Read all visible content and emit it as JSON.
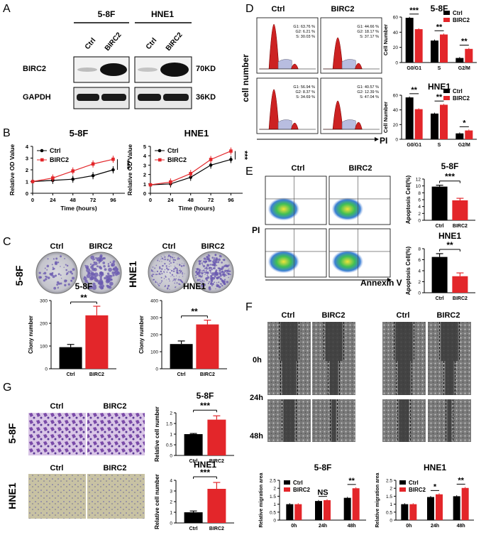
{
  "panel_labels": [
    "A",
    "B",
    "C",
    "D",
    "E",
    "F",
    "G"
  ],
  "ctrl": "Ctrl",
  "birc2": "BIRC2",
  "cell_58f": "5-8F",
  "cell_hne1": "HNE1",
  "A": {
    "targets": [
      "BIRC2",
      "GAPDH"
    ],
    "sizes": [
      "70KD",
      "36KD"
    ]
  },
  "B": {
    "ylabel": "Relative OD Value",
    "xlabel": "Time  (hours)",
    "sig": "***",
    "chart_data": [
      {
        "type": "line",
        "title": "5-8F",
        "x": [
          0,
          24,
          48,
          72,
          96
        ],
        "xlabel": "Time  (hours)",
        "ylabel": "Relative OD Value",
        "ylim": [
          0,
          4
        ],
        "series": [
          {
            "name": "Ctrl",
            "values": [
              1.0,
              1.1,
              1.2,
              1.5,
              2.0
            ]
          },
          {
            "name": "BIRC2",
            "values": [
              1.0,
              1.3,
              1.9,
              2.5,
              2.9
            ]
          }
        ]
      },
      {
        "type": "line",
        "title": "HNE1",
        "x": [
          0,
          24,
          48,
          72,
          96
        ],
        "xlabel": "Time  (hours)",
        "ylabel": "Relative OD Value",
        "ylim": [
          0,
          5
        ],
        "series": [
          {
            "name": "Ctrl",
            "values": [
              0.9,
              1.0,
              1.7,
              3.0,
              3.6
            ]
          },
          {
            "name": "BIRC2",
            "values": [
              0.9,
              1.2,
              2.1,
              3.6,
              4.5
            ]
          }
        ]
      }
    ]
  },
  "C": {
    "ylabel": "Clony number",
    "sig": "**",
    "chart_data": [
      {
        "type": "bar",
        "title": "5-8F",
        "categories": [
          "Ctrl",
          "BIRC2"
        ],
        "values": [
          95,
          235
        ],
        "errors": [
          12,
          40
        ],
        "ylim": [
          0,
          300
        ],
        "ylabel": "Clony number"
      },
      {
        "type": "bar",
        "title": "HNE1",
        "categories": [
          "Ctrl",
          "BIRC2"
        ],
        "values": [
          145,
          260
        ],
        "errors": [
          18,
          25
        ],
        "ylim": [
          0,
          400
        ],
        "ylabel": "Clony number"
      }
    ]
  },
  "D": {
    "ylabel_flow": "cell number",
    "xlabel_flow": "PI",
    "flow_stats": [
      [
        "G1: 63.76 %",
        "G2: 6.21 %",
        "S: 30.03 %"
      ],
      [
        "G1: 44.66 %",
        "G2: 18.17 %",
        "S: 37.17 %"
      ],
      [
        "G1: 56.94 %",
        "G2: 8.37 %",
        "S: 34.69 %"
      ],
      [
        "G1: 40.57 %",
        "G2: 12.39 %",
        "S: 47.04 %"
      ]
    ],
    "ylabel": "Cell Number",
    "sigs_58f": [
      "***",
      "**",
      "**"
    ],
    "sigs_hne1": [
      "**",
      "**",
      "*"
    ],
    "chart_data": [
      {
        "type": "bar",
        "title": "5-8F",
        "categories": [
          "G0/G1",
          "S",
          "G2/M"
        ],
        "ylim": [
          0,
          60
        ],
        "ylabel": "Cell Number",
        "series": [
          {
            "name": "Ctrl",
            "values": [
              59,
              29,
              6
            ]
          },
          {
            "name": "BIRC2",
            "values": [
              44,
              37,
              18
            ]
          }
        ]
      },
      {
        "type": "bar",
        "title": "HNE1",
        "categories": [
          "G0/G1",
          "S",
          "G2/M"
        ],
        "ylim": [
          0,
          60
        ],
        "ylabel": "Cell Number",
        "series": [
          {
            "name": "Ctrl",
            "values": [
              57,
              35,
              8
            ]
          },
          {
            "name": "BIRC2",
            "values": [
              41,
              47,
              12
            ]
          }
        ]
      }
    ]
  },
  "E": {
    "ylabel_flow": "PI",
    "xlabel_flow": "Annexin V",
    "ylabel": "Apoptosis Cell(%)",
    "sig_58f": "***",
    "sig_hne1": "**",
    "chart_data": [
      {
        "type": "bar",
        "title": "5-8F",
        "categories": [
          "Ctrl",
          "BIRC2"
        ],
        "values": [
          9.8,
          5.8
        ],
        "errors": [
          0.4,
          0.6
        ],
        "ylim": [
          0,
          12
        ],
        "ylabel": "Apoptosis Cell(%)"
      },
      {
        "type": "bar",
        "title": "HNE1",
        "categories": [
          "Ctrl",
          "BIRC2"
        ],
        "values": [
          6.5,
          3.0
        ],
        "errors": [
          0.6,
          0.6
        ],
        "ylim": [
          0,
          8
        ],
        "ylabel": "Apoptosis Cell(%)"
      }
    ]
  },
  "F": {
    "times": [
      "0h",
      "24h",
      "48h"
    ],
    "ylabel": "Relative migration area",
    "sigs_58f": [
      "NS",
      "**"
    ],
    "sigs_hne1": [
      "*",
      "**"
    ],
    "chart_data": [
      {
        "type": "bar",
        "title": "5-8F",
        "categories": [
          "0h",
          "24h",
          "48h"
        ],
        "ylim": [
          0,
          2.5
        ],
        "ylabel": "Relative migration area",
        "series": [
          {
            "name": "Ctrl",
            "values": [
              1.0,
              1.2,
              1.4
            ]
          },
          {
            "name": "BIRC2",
            "values": [
              1.0,
              1.25,
              2.0
            ]
          }
        ]
      },
      {
        "type": "bar",
        "title": "HNE1",
        "categories": [
          "0h",
          "24h",
          "48h"
        ],
        "ylim": [
          0,
          2.5
        ],
        "ylabel": "Relative migration area",
        "series": [
          {
            "name": "Ctrl",
            "values": [
              1.0,
              1.45,
              1.5
            ]
          },
          {
            "name": "BIRC2",
            "values": [
              1.0,
              1.62,
              2.02
            ]
          }
        ]
      }
    ]
  },
  "G": {
    "ylabel": "Relative cell number",
    "sig": "***",
    "chart_data": [
      {
        "type": "bar",
        "title": "5-8F",
        "categories": [
          "Ctrl",
          "BIRC2"
        ],
        "values": [
          1.0,
          1.68
        ],
        "errors": [
          0.03,
          0.18
        ],
        "ylim": [
          0,
          2.0
        ],
        "ylabel": "Relative cell number"
      },
      {
        "type": "bar",
        "title": "HNE1",
        "categories": [
          "Ctrl",
          "BIRC2"
        ],
        "values": [
          1.0,
          3.2
        ],
        "errors": [
          0.12,
          0.6
        ],
        "ylim": [
          0,
          4
        ],
        "ylabel": "Relative cell number"
      }
    ]
  },
  "colors": {
    "ctrl": "#000000",
    "birc2": "#e3262a",
    "fill": "#ffffff"
  }
}
